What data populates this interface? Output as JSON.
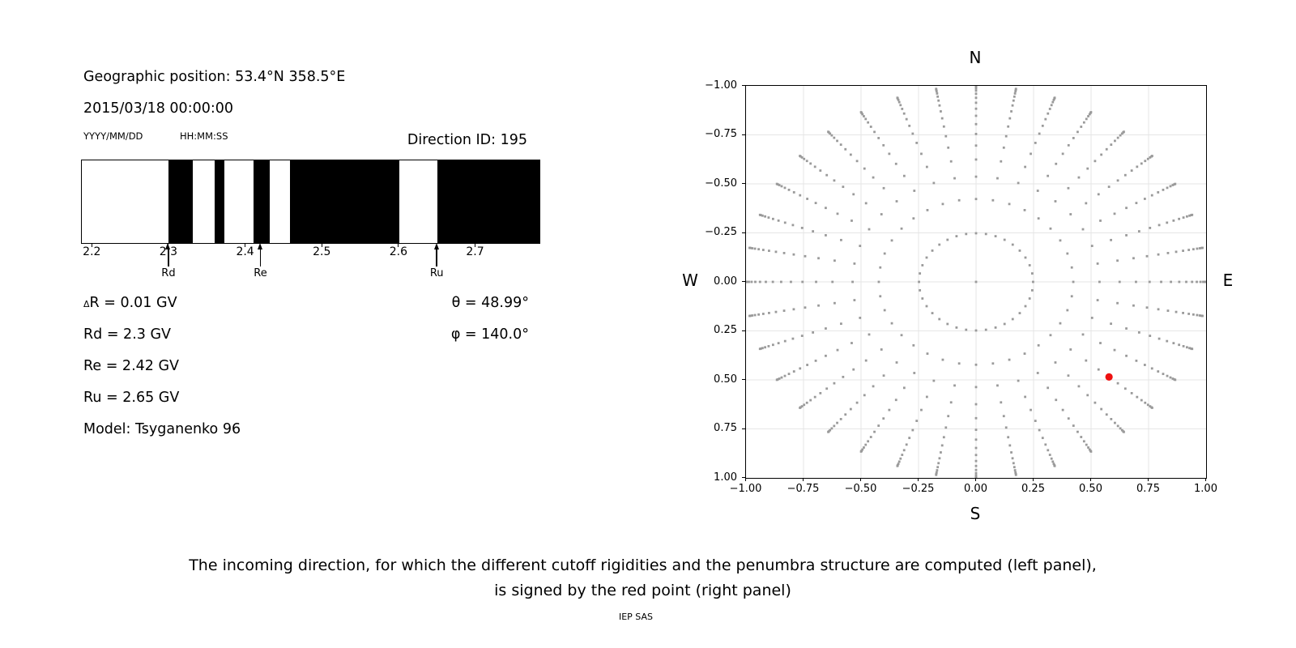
{
  "page": {
    "caption_line1": "The incoming direction, for which the different cutoff rigidities and the penumbra structure are computed (left panel),",
    "caption_line2": "is signed by the red point (right panel)",
    "credit": "IEP SAS"
  },
  "left_panel": {
    "geo_position": "Geographic position: 53.4°N 358.5°E",
    "datetime": "2015/03/18 00:00:00",
    "date_format_label": "YYYY/MM/DD",
    "time_format_label": "HH:MM:SS",
    "direction_id_label": "Direction ID: 195",
    "delta_prefix": "Δ",
    "delta_rest": "R = 0.01 GV",
    "params": [
      "Rd = 2.3 GV",
      "Re = 2.42 GV",
      "Ru = 2.65 GV"
    ],
    "theta": "θ = 48.99°",
    "phi": "φ = 140.0°",
    "model": "Model: Tsyganenko 96"
  },
  "chart_data": [
    {
      "type": "heatmap",
      "name": "penumbra-structure-barcode",
      "x_range_gv": [
        2.187,
        2.784
      ],
      "x_tick_values": [
        2.2,
        2.3,
        2.4,
        2.5,
        2.6,
        2.7
      ],
      "x_tick_labels": [
        "2.2",
        "2.3",
        "2.4",
        "2.5",
        "2.6",
        "2.7"
      ],
      "black_bands_gv": [
        [
          2.3,
          2.332
        ],
        [
          2.36,
          2.373
        ],
        [
          2.411,
          2.432
        ],
        [
          2.459,
          2.601
        ],
        [
          2.651,
          2.784
        ]
      ],
      "band_color": "#000000",
      "background_color": "#ffffff",
      "markers": [
        {
          "label": "Rd",
          "value_gv": 2.3
        },
        {
          "label": "Re",
          "value_gv": 2.42
        },
        {
          "label": "Ru",
          "value_gv": 2.65
        }
      ]
    },
    {
      "type": "scatter",
      "name": "incoming-direction-sky-map",
      "compass": {
        "top": "N",
        "bottom": "S",
        "left": "W",
        "right": "E"
      },
      "xlim": [
        -1,
        1
      ],
      "ylim": [
        -1,
        1
      ],
      "tick_values": [
        -1,
        -0.75,
        -0.5,
        -0.25,
        0,
        0.25,
        0.5,
        0.75,
        1
      ],
      "x_tick_labels": [
        "−1.00",
        "−0.75",
        "−0.50",
        "−0.25",
        "0.00",
        "0.25",
        "0.50",
        "0.75",
        "1.00"
      ],
      "y_tick_labels": [
        "1.00",
        "0.75",
        "0.50",
        "0.25",
        "0.00",
        "−0.25",
        "−0.50",
        "−0.75",
        "−1.00"
      ],
      "grid": true,
      "grid_color": "#e6e6e6",
      "direction_grid": {
        "includes_center_point": true,
        "azimuth_start_deg": 0,
        "azimuth_step_deg": 10,
        "azimuth_count": 36,
        "ring_radii": [
          0.248,
          0.4227,
          0.5367,
          0.6242,
          0.6953,
          0.7545,
          0.8047,
          0.8472,
          0.8833,
          0.9138,
          0.9391,
          0.9596,
          0.9758,
          0.9877,
          0.9956,
          0.9995
        ],
        "ring_zenith_deg": [
          14.36,
          25.02,
          32.46,
          38.62,
          44.05,
          48.99,
          53.57,
          57.91,
          62.05,
          66.03,
          69.9,
          73.66,
          77.36,
          81.01,
          84.62,
          88.21
        ],
        "dot_color": "#9a9a9a"
      },
      "selected_direction": {
        "x": 0.578,
        "y": -0.485,
        "r": 0.7545,
        "theta_deg": 48.99,
        "phi_deg": 140.0,
        "color": "#ee1111"
      }
    }
  ]
}
